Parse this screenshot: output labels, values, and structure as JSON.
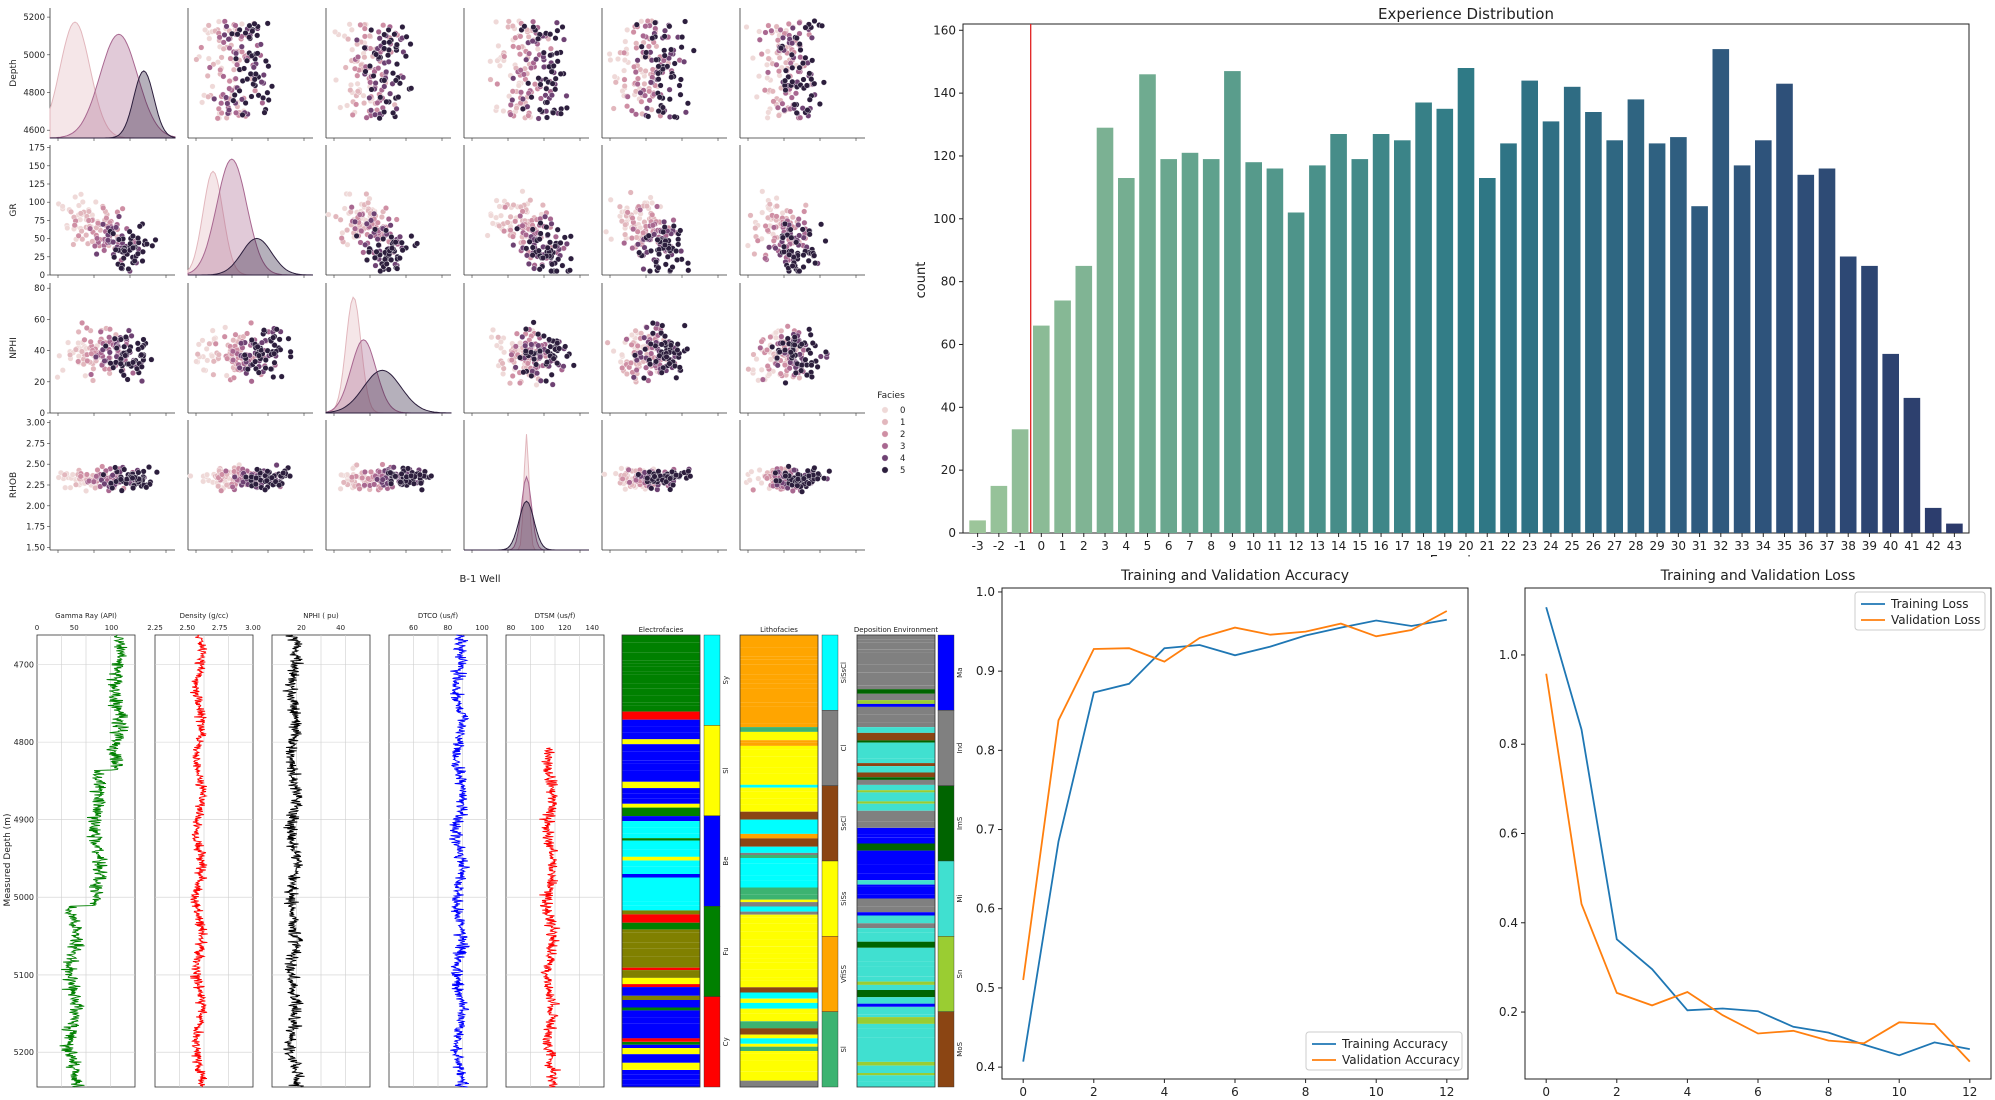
{
  "colors": {
    "hue": [
      "#efd9d8",
      "#e2b7bd",
      "#cf8fa4",
      "#a86790",
      "#6e4273",
      "#2c1e3d"
    ],
    "facies": [
      "#00ffff",
      "#ffff00",
      "#0000ff",
      "#008000",
      "#ff0000"
    ],
    "litho": [
      "#00ffff",
      "#808080",
      "#8b4513",
      "#ffff00",
      "#ffa500",
      "#3cb371"
    ],
    "depo": [
      "#0000ff",
      "#808080",
      "#006400",
      "#40e0d0",
      "#9acd32",
      "#8b4513"
    ],
    "train": "#1f77b4",
    "val": "#ff7f0e"
  },
  "chart_data": [
    {
      "type": "scatter",
      "variables": [
        "Depth",
        "GR",
        "NPHI",
        "RHOB",
        "",
        ""
      ],
      "ticks": {
        "Depth": [
          "4600",
          "4800",
          "5000",
          "5200"
        ],
        "GR": [
          "0",
          "25",
          "50",
          "75",
          "100",
          "125",
          "150",
          "175"
        ],
        "NPHI": [
          "0",
          "20",
          "40",
          "60",
          "80"
        ],
        "RHOB": [
          "1.50",
          "1.75",
          "2.00",
          "2.25",
          "2.50",
          "2.75",
          "3.00"
        ]
      },
      "legend": {
        "title": "Facies",
        "labels": [
          "0",
          "1",
          "2",
          "3",
          "4",
          "5"
        ]
      },
      "caption": "B-1 Well"
    },
    {
      "type": "bar",
      "title": "Experience Distribution",
      "xlabel": "Experience",
      "ylabel": "count",
      "ylim": [
        0,
        162
      ],
      "yticks": [
        0,
        20,
        40,
        60,
        80,
        100,
        120,
        140,
        160
      ],
      "categories": [
        "-3",
        "-2",
        "-1",
        "0",
        "1",
        "2",
        "3",
        "4",
        "5",
        "6",
        "7",
        "8",
        "9",
        "10",
        "11",
        "12",
        "13",
        "14",
        "15",
        "16",
        "17",
        "18",
        "19",
        "20",
        "21",
        "22",
        "23",
        "24",
        "25",
        "26",
        "27",
        "28",
        "29",
        "30",
        "31",
        "32",
        "33",
        "34",
        "35",
        "36",
        "37",
        "38",
        "39",
        "40",
        "41",
        "42",
        "43"
      ],
      "values": [
        4,
        15,
        33,
        66,
        74,
        85,
        129,
        113,
        146,
        119,
        121,
        119,
        147,
        118,
        116,
        102,
        117,
        127,
        119,
        127,
        125,
        137,
        135,
        148,
        113,
        124,
        144,
        131,
        142,
        134,
        125,
        138,
        124,
        126,
        104,
        154,
        117,
        125,
        143,
        114,
        116,
        88,
        85,
        57,
        43,
        8,
        3
      ],
      "vline_at": "-1"
    },
    {
      "type": "line",
      "label": "Measured Depth (m)",
      "depth_ticks": [
        "4700",
        "4800",
        "4900",
        "5000",
        "5100",
        "5200"
      ],
      "tracks": [
        {
          "title": "Gamma Ray (API)",
          "ticks": [
            "0",
            "50",
            "100"
          ],
          "color": "#008000"
        },
        {
          "title": "Density (g/cc)",
          "ticks": [
            "2.25",
            "2.50",
            "2.75",
            "3.00"
          ],
          "color": "#ff0000"
        },
        {
          "title": "NPHI ( pu)",
          "ticks": [
            "20",
            "40"
          ],
          "color": "#000000"
        },
        {
          "title": "DTCO (us/f)",
          "ticks": [
            "60",
            "80",
            "100"
          ],
          "color": "#0000ff"
        },
        {
          "title": "DTSM (us/f)",
          "ticks": [
            "80",
            "100",
            "120",
            "140"
          ],
          "color": "#ff0000"
        }
      ],
      "columns": [
        {
          "title": "Electrofacies",
          "labels": [
            "Sy",
            "Sl",
            "Be",
            "Fu",
            "Cy"
          ]
        },
        {
          "title": "Lithofacies",
          "labels": [
            "SiSsCl",
            "Cl",
            "SsCl",
            "SiSs",
            "VfiSS",
            "Sl"
          ]
        },
        {
          "title": "Deposition Environment",
          "labels": [
            "Ma",
            "Ind",
            "ImS",
            "Mi",
            "Sn",
            "MoS"
          ]
        }
      ]
    },
    {
      "type": "line",
      "title": "Training and Validation Accuracy",
      "x": [
        0,
        1,
        2,
        3,
        4,
        5,
        6,
        7,
        8,
        9,
        10,
        11,
        12
      ],
      "xticks": [
        0,
        2,
        4,
        6,
        8,
        10,
        12
      ],
      "yticks": [
        0.4,
        0.5,
        0.6,
        0.7,
        0.8,
        0.9,
        1.0
      ],
      "ylim": [
        0.385,
        1.005
      ],
      "series": [
        {
          "name": "Training Accuracy",
          "values": [
            0.407,
            0.685,
            0.873,
            0.884,
            0.929,
            0.933,
            0.92,
            0.931,
            0.945,
            0.955,
            0.964,
            0.957,
            0.965
          ]
        },
        {
          "name": "Validation Accuracy",
          "values": [
            0.51,
            0.838,
            0.928,
            0.929,
            0.912,
            0.942,
            0.955,
            0.946,
            0.95,
            0.96,
            0.944,
            0.952,
            0.976
          ]
        }
      ],
      "legend": "lower right"
    },
    {
      "type": "line",
      "title": "Training and Validation Loss",
      "x": [
        0,
        1,
        2,
        3,
        4,
        5,
        6,
        7,
        8,
        9,
        10,
        11,
        12
      ],
      "xticks": [
        0,
        2,
        4,
        6,
        8,
        10,
        12
      ],
      "yticks": [
        0.2,
        0.4,
        0.6,
        0.8,
        1.0
      ],
      "ylim": [
        0.05,
        1.15
      ],
      "series": [
        {
          "name": "Training Loss",
          "values": [
            1.107,
            0.833,
            0.363,
            0.296,
            0.204,
            0.208,
            0.202,
            0.167,
            0.154,
            0.127,
            0.103,
            0.132,
            0.117
          ]
        },
        {
          "name": "Validation Loss",
          "values": [
            0.958,
            0.442,
            0.243,
            0.215,
            0.245,
            0.193,
            0.152,
            0.158,
            0.136,
            0.13,
            0.177,
            0.173,
            0.089
          ]
        }
      ],
      "legend": "upper right"
    }
  ]
}
